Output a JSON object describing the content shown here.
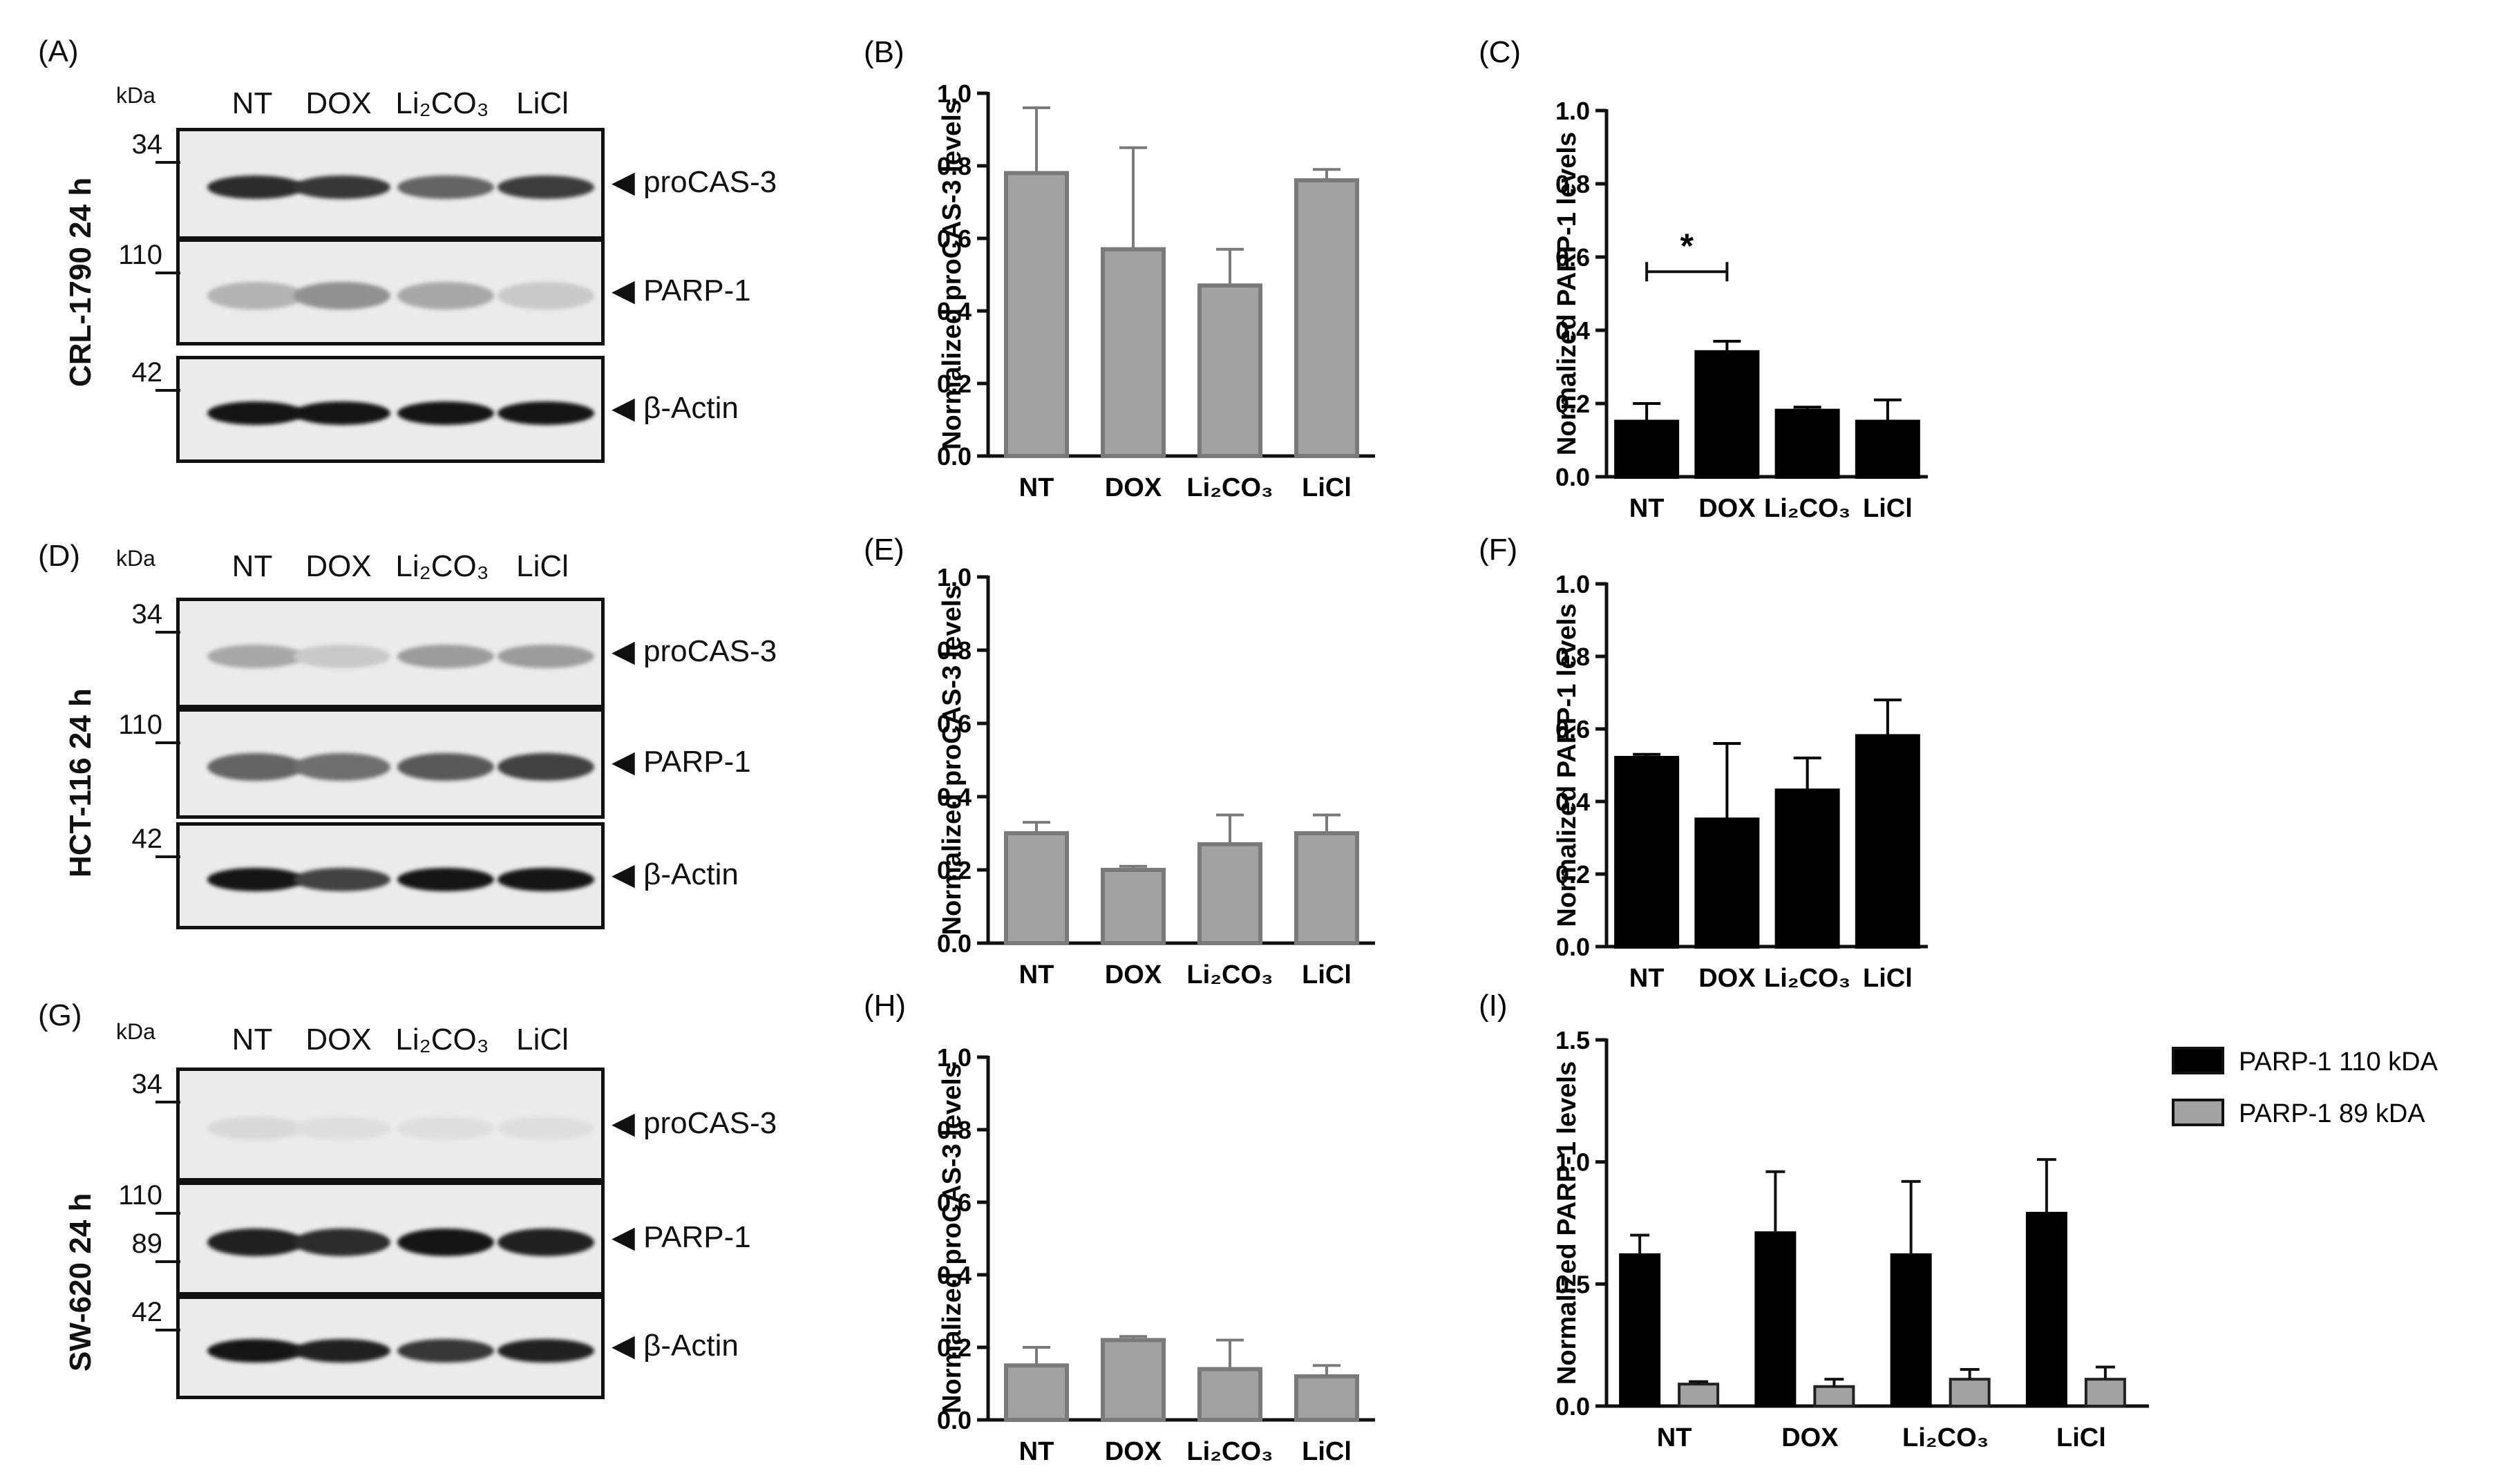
{
  "blots": [
    {
      "panel": "(A)",
      "row_label": "CRL-1790 24 h",
      "kda_label": "kDa",
      "lanes": [
        "NT",
        "DOX",
        "Li₂CO₃",
        "LiCl"
      ],
      "strips": [
        {
          "target": "◀ proCAS-3",
          "mw": [
            "34"
          ]
        },
        {
          "target": "◀ PARP-1",
          "mw": [
            "110"
          ]
        },
        {
          "target": "◀ β-Actin",
          "mw": [
            "42"
          ]
        }
      ]
    },
    {
      "panel": "(D)",
      "row_label": "HCT-116 24 h",
      "kda_label": "kDa",
      "lanes": [
        "NT",
        "DOX",
        "Li₂CO₃",
        "LiCl"
      ],
      "strips": [
        {
          "target": "◀  proCAS-3",
          "mw": [
            "34"
          ]
        },
        {
          "target": "◀ PARP-1",
          "mw": [
            "110"
          ]
        },
        {
          "target": "◀ β-Actin",
          "mw": [
            "42"
          ]
        }
      ]
    },
    {
      "panel": "(G)",
      "row_label": "SW-620 24 h",
      "kda_label": "kDa",
      "lanes": [
        "NT",
        "DOX",
        "Li₂CO₃",
        "LiCl"
      ],
      "strips": [
        {
          "target": "◀ proCAS-3",
          "mw": [
            "34"
          ]
        },
        {
          "target": "◀ PARP-1",
          "mw": [
            "110",
            "89"
          ]
        },
        {
          "target": "◀ β-Actin",
          "mw": [
            "42"
          ]
        }
      ]
    }
  ],
  "band_intensity": [
    [
      [
        0.85,
        0.8,
        0.6,
        0.78
      ],
      [
        0.25,
        0.4,
        0.3,
        0.15
      ],
      [
        0.95,
        0.95,
        0.95,
        0.95
      ]
    ],
    [
      [
        0.3,
        0.15,
        0.35,
        0.35
      ],
      [
        0.6,
        0.55,
        0.65,
        0.75
      ],
      [
        0.95,
        0.75,
        0.95,
        0.95
      ]
    ],
    [
      [
        0.08,
        0.06,
        0.06,
        0.06
      ],
      [
        0.9,
        0.85,
        0.95,
        0.9
      ],
      [
        0.95,
        0.9,
        0.8,
        0.9
      ]
    ]
  ],
  "colors": {
    "gray_bar": "#a2a2a2",
    "gray_edge": "#7a7a7a",
    "black_bar": "#000000",
    "legend_gray": "#a2a2a2"
  },
  "chart_data": [
    {
      "panel": "(B)",
      "type": "bar",
      "categories": [
        "NT",
        "DOX",
        "Li₂CO₃",
        "LiCl"
      ],
      "values": [
        0.78,
        0.57,
        0.47,
        0.76
      ],
      "errors": [
        0.18,
        0.28,
        0.1,
        0.03
      ],
      "ylabel": "Normalized proCAS-3 levels",
      "ylim": [
        0,
        1.0
      ],
      "yticks": [
        "0.0",
        "0.2",
        "0.4",
        "0.6",
        "0.8",
        "1.0"
      ],
      "color": "gray"
    },
    {
      "panel": "(C)",
      "type": "bar",
      "categories": [
        "NT",
        "DOX",
        "Li₂CO₃",
        "LiCl"
      ],
      "values": [
        0.15,
        0.34,
        0.18,
        0.15
      ],
      "errors": [
        0.05,
        0.03,
        0.01,
        0.06
      ],
      "ylabel": "Normalized PARP-1 levels",
      "ylim": [
        0,
        1.0
      ],
      "yticks": [
        "0.0",
        "0.2",
        "0.4",
        "0.6",
        "0.8",
        "1.0"
      ],
      "color": "black",
      "significance": {
        "label": "*",
        "from": 0,
        "to": 1
      }
    },
    {
      "panel": "(E)",
      "type": "bar",
      "categories": [
        "NT",
        "DOX",
        "Li₂CO₃",
        "LiCl"
      ],
      "values": [
        0.3,
        0.2,
        0.27,
        0.3
      ],
      "errors": [
        0.03,
        0.01,
        0.08,
        0.05
      ],
      "ylabel": "Normalized proCAS-3 levels",
      "ylim": [
        0,
        1.0
      ],
      "yticks": [
        "0.0",
        "0.2",
        "0.4",
        "0.6",
        "0.8",
        "1.0"
      ],
      "color": "gray"
    },
    {
      "panel": "(F)",
      "type": "bar",
      "categories": [
        "NT",
        "DOX",
        "Li₂CO₃",
        "LiCl"
      ],
      "values": [
        0.52,
        0.35,
        0.43,
        0.58
      ],
      "errors": [
        0.01,
        0.21,
        0.09,
        0.1
      ],
      "ylabel": "Normalized PARP-1 levels",
      "ylim": [
        0,
        1.0
      ],
      "yticks": [
        "0.0",
        "0.2",
        "0.4",
        "0.6",
        "0.8",
        "1.0"
      ],
      "color": "black"
    },
    {
      "panel": "(H)",
      "type": "bar",
      "categories": [
        "NT",
        "DOX",
        "Li₂CO₃",
        "LiCl"
      ],
      "values": [
        0.15,
        0.22,
        0.14,
        0.12
      ],
      "errors": [
        0.05,
        0.01,
        0.08,
        0.03
      ],
      "ylabel": "Normalized proCAS-3 levels",
      "ylim": [
        0,
        1.0
      ],
      "yticks": [
        "0.0",
        "0.2",
        "0.4",
        "0.6",
        "0.8",
        "1.0"
      ],
      "color": "gray"
    },
    {
      "panel": "(I)",
      "type": "bar",
      "categories": [
        "NT",
        "DOX",
        "Li₂CO₃",
        "LiCl"
      ],
      "series": [
        {
          "name": "PARP-1 110 kDA",
          "values": [
            0.62,
            0.71,
            0.62,
            0.79
          ],
          "errors": [
            0.08,
            0.25,
            0.3,
            0.22
          ],
          "color": "black"
        },
        {
          "name": "PARP-1 89 kDA",
          "values": [
            0.09,
            0.08,
            0.11,
            0.11
          ],
          "errors": [
            0.01,
            0.03,
            0.04,
            0.05
          ],
          "color": "gray"
        }
      ],
      "ylabel": "Normalized PARP-1 levels",
      "ylim": [
        0,
        1.5
      ],
      "yticks": [
        "0.0",
        "0.5",
        "1.0",
        "1.5"
      ],
      "legend": "right"
    }
  ]
}
